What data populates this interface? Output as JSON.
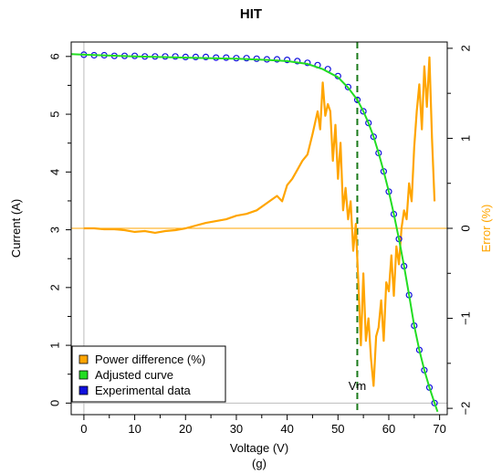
{
  "chart_data": {
    "type": "line",
    "title": "HIT",
    "xlabel": "Voltage (V)",
    "ylabel": "Current (A)",
    "y2label": "Error (%)",
    "caption": "(g)",
    "xlim": [
      -2.5,
      71.5
    ],
    "ylim": [
      -0.2,
      6.25
    ],
    "y2lim": [
      -2.07,
      2.07
    ],
    "x_ticks": [
      "0",
      "10",
      "20",
      "30",
      "40",
      "50",
      "60",
      "70"
    ],
    "y_ticks": [
      "0",
      "1",
      "2",
      "3",
      "4",
      "5",
      "6"
    ],
    "y2_ticks": [
      "-2",
      "-1",
      "0",
      "1",
      "2"
    ],
    "grid": false,
    "legend_position": "bottom-left",
    "reference_lines": {
      "vertical_zero_x": 0,
      "horizontal_zero_current": 0,
      "horizontal_zero_error": 0
    },
    "vm": {
      "label": "Vm",
      "x": 53.8
    },
    "colors": {
      "power": "#FFA500",
      "adjusted": "#22DD22",
      "experimental": "#1010DD",
      "vm": "#1A7A1A",
      "error_axis": "#FFA500",
      "zero_error": "#FFA500"
    },
    "series": [
      {
        "name": "Experimental data",
        "axis": "left",
        "style": "points",
        "x": [
          0,
          2,
          4,
          6,
          8,
          10,
          12,
          14,
          16,
          18,
          20,
          22,
          24,
          26,
          28,
          30,
          32,
          34,
          36,
          38,
          40,
          42,
          44,
          46,
          48,
          50,
          52,
          53.8,
          55,
          56,
          57,
          58,
          59,
          60,
          61,
          62,
          63,
          64,
          65,
          66,
          67,
          68,
          69
        ],
        "values": [
          6.03,
          6.02,
          6.02,
          6.01,
          6.01,
          6.01,
          6.0,
          6.0,
          6.0,
          6.0,
          5.99,
          5.99,
          5.99,
          5.98,
          5.98,
          5.97,
          5.97,
          5.96,
          5.95,
          5.95,
          5.94,
          5.92,
          5.89,
          5.85,
          5.78,
          5.66,
          5.47,
          5.25,
          5.05,
          4.85,
          4.61,
          4.33,
          4.01,
          3.66,
          3.27,
          2.84,
          2.37,
          1.87,
          1.34,
          0.92,
          0.57,
          0.27,
          0.0
        ]
      },
      {
        "name": "Adjusted curve",
        "axis": "left",
        "style": "line",
        "x": [
          -2.5,
          0,
          10,
          20,
          30,
          36,
          40,
          44,
          47,
          50,
          52,
          53.8,
          55,
          56,
          57,
          58,
          59,
          60,
          61,
          62,
          63,
          64,
          65,
          66,
          67,
          68,
          69,
          69.6
        ],
        "values": [
          6.04,
          6.03,
          6.0,
          5.98,
          5.96,
          5.94,
          5.92,
          5.87,
          5.78,
          5.64,
          5.46,
          5.25,
          5.05,
          4.85,
          4.61,
          4.33,
          4.01,
          3.66,
          3.27,
          2.84,
          2.37,
          1.87,
          1.34,
          0.92,
          0.57,
          0.27,
          0.0,
          -0.15
        ]
      },
      {
        "name": "Power difference (%)",
        "axis": "right",
        "style": "line",
        "x": [
          0,
          2,
          4,
          6,
          8,
          10,
          12,
          14,
          16,
          18,
          20,
          22,
          24,
          26,
          28,
          30,
          32,
          34,
          36,
          38,
          39,
          40,
          41,
          42,
          43,
          44,
          45,
          46,
          46.5,
          47,
          47.5,
          48,
          48.5,
          49,
          49.5,
          50,
          50.5,
          51,
          51.5,
          52,
          52.5,
          53,
          53.5,
          54,
          54.5,
          55,
          55.5,
          56,
          56.5,
          57,
          57.5,
          58,
          58.5,
          59,
          59.5,
          60,
          60.5,
          61,
          61.5,
          62,
          62.5,
          63,
          63.5,
          64,
          64.5,
          65,
          65.5,
          66,
          66.5,
          67,
          67.5,
          68,
          68.5,
          69
        ],
        "values": [
          0.0,
          0.0,
          -0.01,
          -0.01,
          -0.02,
          -0.04,
          -0.03,
          -0.05,
          -0.03,
          -0.02,
          0.0,
          0.03,
          0.06,
          0.08,
          0.1,
          0.14,
          0.16,
          0.2,
          0.28,
          0.36,
          0.3,
          0.48,
          0.55,
          0.65,
          0.75,
          0.82,
          1.05,
          1.3,
          1.1,
          1.62,
          1.25,
          1.38,
          1.3,
          0.75,
          1.15,
          0.55,
          0.95,
          0.2,
          0.45,
          0.1,
          0.3,
          -0.25,
          0.05,
          -0.6,
          -1.3,
          -0.5,
          -1.25,
          -1.0,
          -1.45,
          -1.75,
          -1.2,
          -1.1,
          -0.8,
          -1.25,
          -0.6,
          -0.7,
          -0.3,
          -0.75,
          -0.2,
          -0.4,
          0.0,
          0.2,
          0.1,
          0.5,
          0.3,
          0.9,
          1.3,
          1.6,
          1.1,
          1.8,
          1.35,
          1.9,
          1.0,
          0.3
        ]
      }
    ]
  }
}
